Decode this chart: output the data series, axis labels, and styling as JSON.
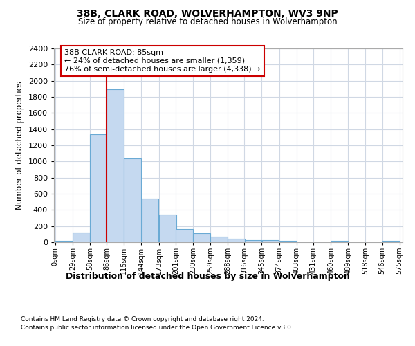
{
  "title1": "38B, CLARK ROAD, WOLVERHAMPTON, WV3 9NP",
  "title2": "Size of property relative to detached houses in Wolverhampton",
  "xlabel": "Distribution of detached houses by size in Wolverhampton",
  "ylabel": "Number of detached properties",
  "footer1": "Contains HM Land Registry data © Crown copyright and database right 2024.",
  "footer2": "Contains public sector information licensed under the Open Government Licence v3.0.",
  "bin_labels": [
    "0sqm",
    "29sqm",
    "58sqm",
    "86sqm",
    "115sqm",
    "144sqm",
    "173sqm",
    "201sqm",
    "230sqm",
    "259sqm",
    "288sqm",
    "316sqm",
    "345sqm",
    "374sqm",
    "403sqm",
    "431sqm",
    "460sqm",
    "489sqm",
    "518sqm",
    "546sqm",
    "575sqm"
  ],
  "bar_heights": [
    20,
    120,
    1340,
    1890,
    1040,
    540,
    340,
    165,
    110,
    65,
    40,
    30,
    25,
    20,
    0,
    0,
    20,
    0,
    0,
    20
  ],
  "bar_color": "#c5d9f0",
  "bar_edgecolor": "#6aaad4",
  "property_line_color": "#cc0000",
  "property_bin_index": 3,
  "annotation_title": "38B CLARK ROAD: 85sqm",
  "annotation_line1": "← 24% of detached houses are smaller (1,359)",
  "annotation_line2": "76% of semi-detached houses are larger (4,338) →",
  "annotation_border_color": "#cc0000",
  "ylim": [
    0,
    2400
  ],
  "yticks": [
    0,
    200,
    400,
    600,
    800,
    1000,
    1200,
    1400,
    1600,
    1800,
    2000,
    2200,
    2400
  ],
  "bin_starts": [
    0,
    29,
    58,
    86,
    115,
    144,
    173,
    201,
    230,
    259,
    288,
    316,
    345,
    374,
    403,
    431,
    460,
    489,
    518,
    546
  ],
  "bin_width": 29,
  "fig_facecolor": "#ffffff",
  "ax_facecolor": "#ffffff",
  "grid_color": "#d0d8e4"
}
